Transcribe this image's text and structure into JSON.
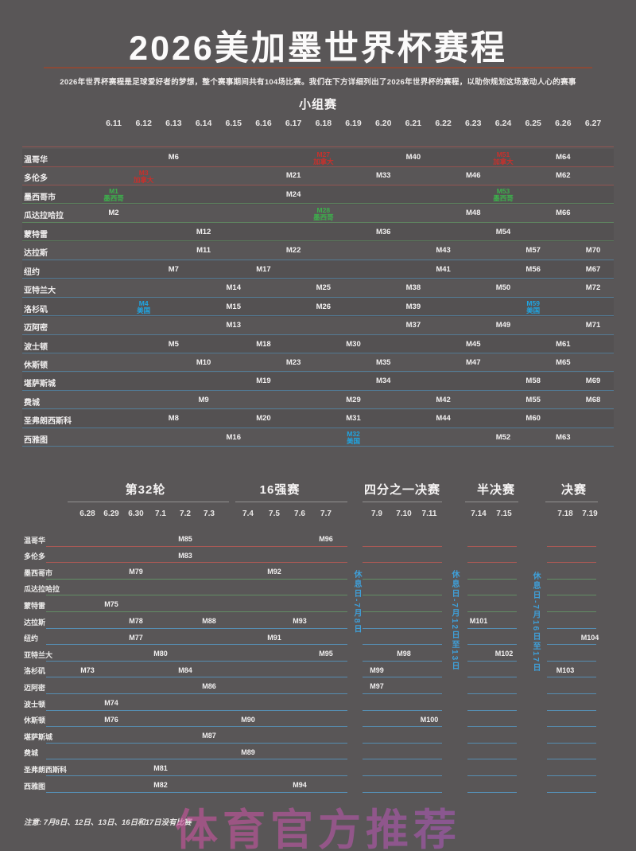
{
  "page": {
    "title": "2026美加墨世界杯赛程",
    "subtitle": "2026年世界杯赛程是足球爱好者的梦想，整个赛事期间共有104场比赛。我们在下方详细列出了2026年世界杯的赛程，以助你规划这场激动人心的赛事",
    "note": "注意: 7月8日、12日、13日、16日和17日没有比赛",
    "watermark": "体育官方推荐"
  },
  "colors": {
    "background": "#595657",
    "title_rule": "#8a4a38",
    "canada_text": "#c8302c",
    "mexico_text": "#3db04c",
    "usa_text": "#1ea6e4",
    "rest_label": "#3f9fd8",
    "watermark_from": "#e0559a",
    "watermark_to": "#8e5cc8"
  },
  "chart_data": [
    {
      "type": "table",
      "title": "小组赛",
      "columns": [
        "6.11",
        "6.12",
        "6.13",
        "6.14",
        "6.15",
        "6.16",
        "6.17",
        "6.18",
        "6.19",
        "6.20",
        "6.21",
        "6.22",
        "6.23",
        "6.24",
        "6.25",
        "6.26",
        "6.27"
      ],
      "rows": [
        "温哥华",
        "多伦多",
        "墨西哥市",
        "瓜达拉哈拉",
        "蒙特雷",
        "达拉斯",
        "纽约",
        "亚特兰大",
        "洛杉矶",
        "迈阿密",
        "波士顿",
        "休斯顿",
        "堪萨斯城",
        "费城",
        "圣弗朗西斯科",
        "西雅图"
      ],
      "row_countries": [
        "canada",
        "canada",
        "mexico",
        "mexico",
        "mexico",
        "usa",
        "usa",
        "usa",
        "usa",
        "usa",
        "usa",
        "usa",
        "usa",
        "usa",
        "usa",
        "usa"
      ],
      "cells": [
        {
          "row": 0,
          "col": "6.13",
          "text": "M6"
        },
        {
          "row": 0,
          "col": "6.18",
          "text": "M27",
          "team": "加拿大",
          "highlight": "canada"
        },
        {
          "row": 0,
          "col": "6.21",
          "text": "M40"
        },
        {
          "row": 0,
          "col": "6.24",
          "text": "M51",
          "team": "加拿大",
          "highlight": "canada"
        },
        {
          "row": 0,
          "col": "6.26",
          "text": "M64"
        },
        {
          "row": 1,
          "col": "6.12",
          "text": "M3",
          "team": "加拿大",
          "highlight": "canada"
        },
        {
          "row": 1,
          "col": "6.17",
          "text": "M21"
        },
        {
          "row": 1,
          "col": "6.20",
          "text": "M33"
        },
        {
          "row": 1,
          "col": "6.23",
          "text": "M46"
        },
        {
          "row": 1,
          "col": "6.26",
          "text": "M62"
        },
        {
          "row": 2,
          "col": "6.11",
          "text": "M1",
          "team": "墨西哥",
          "highlight": "mexico"
        },
        {
          "row": 2,
          "col": "6.17",
          "text": "M24"
        },
        {
          "row": 2,
          "col": "6.24",
          "text": "M53",
          "team": "墨西哥",
          "highlight": "mexico"
        },
        {
          "row": 3,
          "col": "6.11",
          "text": "M2"
        },
        {
          "row": 3,
          "col": "6.18",
          "text": "M28",
          "team": "墨西哥",
          "highlight": "mexico"
        },
        {
          "row": 3,
          "col": "6.23",
          "text": "M48"
        },
        {
          "row": 3,
          "col": "6.26",
          "text": "M66"
        },
        {
          "row": 4,
          "col": "6.14",
          "text": "M12"
        },
        {
          "row": 4,
          "col": "6.20",
          "text": "M36"
        },
        {
          "row": 4,
          "col": "6.24",
          "text": "M54"
        },
        {
          "row": 5,
          "col": "6.14",
          "text": "M11"
        },
        {
          "row": 5,
          "col": "6.17",
          "text": "M22"
        },
        {
          "row": 5,
          "col": "6.22",
          "text": "M43"
        },
        {
          "row": 5,
          "col": "6.25",
          "text": "M57"
        },
        {
          "row": 5,
          "col": "6.27",
          "text": "M70"
        },
        {
          "row": 6,
          "col": "6.13",
          "text": "M7"
        },
        {
          "row": 6,
          "col": "6.16",
          "text": "M17"
        },
        {
          "row": 6,
          "col": "6.22",
          "text": "M41"
        },
        {
          "row": 6,
          "col": "6.25",
          "text": "M56"
        },
        {
          "row": 6,
          "col": "6.27",
          "text": "M67"
        },
        {
          "row": 7,
          "col": "6.15",
          "text": "M14"
        },
        {
          "row": 7,
          "col": "6.18",
          "text": "M25"
        },
        {
          "row": 7,
          "col": "6.21",
          "text": "M38"
        },
        {
          "row": 7,
          "col": "6.24",
          "text": "M50"
        },
        {
          "row": 7,
          "col": "6.27",
          "text": "M72"
        },
        {
          "row": 8,
          "col": "6.12",
          "text": "M4",
          "team": "美国",
          "highlight": "usa"
        },
        {
          "row": 8,
          "col": "6.15",
          "text": "M15"
        },
        {
          "row": 8,
          "col": "6.18",
          "text": "M26"
        },
        {
          "row": 8,
          "col": "6.21",
          "text": "M39"
        },
        {
          "row": 8,
          "col": "6.25",
          "text": "M59",
          "team": "美国",
          "highlight": "usa"
        },
        {
          "row": 9,
          "col": "6.15",
          "text": "M13"
        },
        {
          "row": 9,
          "col": "6.21",
          "text": "M37"
        },
        {
          "row": 9,
          "col": "6.24",
          "text": "M49"
        },
        {
          "row": 9,
          "col": "6.27",
          "text": "M71"
        },
        {
          "row": 10,
          "col": "6.13",
          "text": "M5"
        },
        {
          "row": 10,
          "col": "6.16",
          "text": "M18"
        },
        {
          "row": 10,
          "col": "6.19",
          "text": "M30"
        },
        {
          "row": 10,
          "col": "6.23",
          "text": "M45"
        },
        {
          "row": 10,
          "col": "6.26",
          "text": "M61"
        },
        {
          "row": 11,
          "col": "6.14",
          "text": "M10"
        },
        {
          "row": 11,
          "col": "6.17",
          "text": "M23"
        },
        {
          "row": 11,
          "col": "6.20",
          "text": "M35"
        },
        {
          "row": 11,
          "col": "6.23",
          "text": "M47"
        },
        {
          "row": 11,
          "col": "6.26",
          "text": "M65"
        },
        {
          "row": 12,
          "col": "6.16",
          "text": "M19"
        },
        {
          "row": 12,
          "col": "6.20",
          "text": "M34"
        },
        {
          "row": 12,
          "col": "6.25",
          "text": "M58"
        },
        {
          "row": 12,
          "col": "6.27",
          "text": "M69"
        },
        {
          "row": 13,
          "col": "6.14",
          "text": "M9"
        },
        {
          "row": 13,
          "col": "6.19",
          "text": "M29"
        },
        {
          "row": 13,
          "col": "6.22",
          "text": "M42"
        },
        {
          "row": 13,
          "col": "6.25",
          "text": "M55"
        },
        {
          "row": 13,
          "col": "6.27",
          "text": "M68"
        },
        {
          "row": 14,
          "col": "6.13",
          "text": "M8"
        },
        {
          "row": 14,
          "col": "6.16",
          "text": "M20"
        },
        {
          "row": 14,
          "col": "6.19",
          "text": "M31"
        },
        {
          "row": 14,
          "col": "6.22",
          "text": "M44"
        },
        {
          "row": 14,
          "col": "6.25",
          "text": "M60"
        },
        {
          "row": 15,
          "col": "6.15",
          "text": "M16"
        },
        {
          "row": 15,
          "col": "6.19",
          "text": "M32",
          "team": "美国",
          "highlight": "usa"
        },
        {
          "row": 15,
          "col": "6.24",
          "text": "M52"
        },
        {
          "row": 15,
          "col": "6.26",
          "text": "M63"
        }
      ]
    },
    {
      "type": "table",
      "title": "淘汰赛",
      "sections": [
        {
          "title": "第32轮",
          "dates": [
            "6.28",
            "6.29",
            "6.30",
            "7.1",
            "7.2",
            "7.3"
          ]
        },
        {
          "title": "16强赛",
          "dates": [
            "7.4",
            "7.5",
            "7.6",
            "7.7"
          ]
        },
        {
          "title": "四分之一决赛",
          "dates": [
            "7.9",
            "7.10",
            "7.11"
          ]
        },
        {
          "title": "半决赛",
          "dates": [
            "7.14",
            "7.15"
          ]
        },
        {
          "title": "决赛",
          "dates": [
            "7.18",
            "7.19"
          ]
        }
      ],
      "rest_labels": [
        "休息日-7月8日",
        "休息日-7月12日至13日",
        "休息日-7月16日至17日"
      ],
      "rows": [
        "温哥华",
        "多伦多",
        "墨西哥市",
        "瓜达拉哈拉",
        "蒙特雷",
        "达拉斯",
        "纽约",
        "亚特兰大",
        "洛杉矶",
        "迈阿密",
        "波士顿",
        "休斯顿",
        "堪萨斯城",
        "费城",
        "圣弗朗西斯科",
        "西雅图"
      ],
      "cells": [
        {
          "row": 0,
          "col": "7.2",
          "text": "M85"
        },
        {
          "row": 0,
          "col": "7.7",
          "text": "M96"
        },
        {
          "row": 1,
          "col": "7.2",
          "text": "M83"
        },
        {
          "row": 2,
          "col": "6.30",
          "text": "M79"
        },
        {
          "row": 2,
          "col": "7.5",
          "text": "M92"
        },
        {
          "row": 4,
          "col": "6.29",
          "text": "M75"
        },
        {
          "row": 5,
          "col": "6.30",
          "text": "M78"
        },
        {
          "row": 5,
          "col": "7.3",
          "text": "M88"
        },
        {
          "row": 5,
          "col": "7.6",
          "text": "M93"
        },
        {
          "row": 5,
          "col": "7.14",
          "text": "M101"
        },
        {
          "row": 6,
          "col": "6.30",
          "text": "M77"
        },
        {
          "row": 6,
          "col": "7.5",
          "text": "M91"
        },
        {
          "row": 6,
          "col": "7.19",
          "text": "M104"
        },
        {
          "row": 7,
          "col": "7.1",
          "text": "M80"
        },
        {
          "row": 7,
          "col": "7.7",
          "text": "M95"
        },
        {
          "row": 7,
          "col": "7.10",
          "text": "M98"
        },
        {
          "row": 7,
          "col": "7.15",
          "text": "M102"
        },
        {
          "row": 8,
          "col": "6.28",
          "text": "M73"
        },
        {
          "row": 8,
          "col": "7.2",
          "text": "M84"
        },
        {
          "row": 8,
          "col": "7.9",
          "text": "M99"
        },
        {
          "row": 8,
          "col": "7.18",
          "text": "M103"
        },
        {
          "row": 9,
          "col": "7.3",
          "text": "M86"
        },
        {
          "row": 9,
          "col": "7.9",
          "text": "M97"
        },
        {
          "row": 10,
          "col": "6.29",
          "text": "M74"
        },
        {
          "row": 11,
          "col": "6.29",
          "text": "M76"
        },
        {
          "row": 11,
          "col": "7.4",
          "text": "M90"
        },
        {
          "row": 11,
          "col": "7.11",
          "text": "M100"
        },
        {
          "row": 12,
          "col": "7.3",
          "text": "M87"
        },
        {
          "row": 13,
          "col": "7.4",
          "text": "M89"
        },
        {
          "row": 14,
          "col": "7.1",
          "text": "M81"
        },
        {
          "row": 15,
          "col": "7.1",
          "text": "M82"
        },
        {
          "row": 15,
          "col": "7.6",
          "text": "M94"
        }
      ]
    }
  ]
}
